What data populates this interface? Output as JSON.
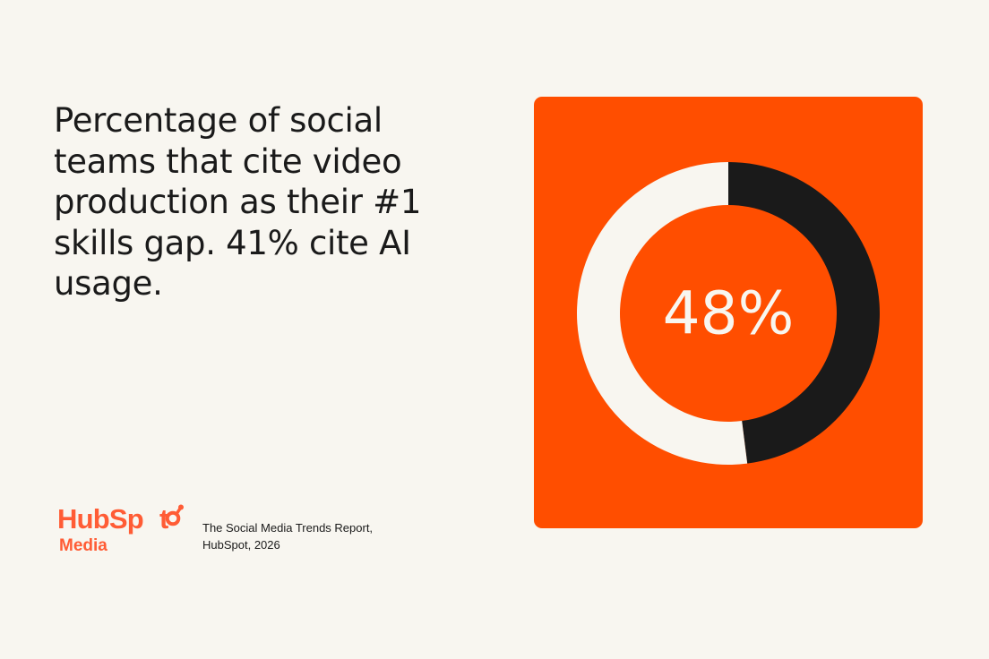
{
  "headline": "Percentage of social teams that cite video production as their #1 skills gap. 41% cite AI usage.",
  "source": {
    "line1": "The Social Media Trends Report,",
    "line2": "HubSpot, 2026"
  },
  "logo": {
    "wordmark": "HubSpot",
    "sub": "Media",
    "color": "#ff5c35"
  },
  "chart_data": {
    "type": "pie",
    "title": "",
    "center_label": "48%",
    "values": [
      48,
      52
    ],
    "colors": [
      "#1a1a1a",
      "#f8f6f0"
    ],
    "background": "#ff4e00"
  }
}
